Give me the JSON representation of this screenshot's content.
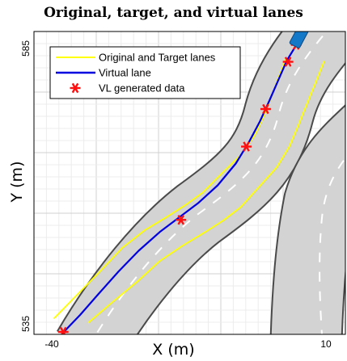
{
  "chart_data": {
    "type": "line",
    "title": "Original, target, and virtual lanes",
    "xlabel": "X (m)",
    "ylabel": "Y (m)",
    "xlim": [
      -40,
      10
    ],
    "ylim": [
      535,
      585
    ],
    "x_ticks_labeled": [
      "-40",
      "10"
    ],
    "y_ticks_labeled": [
      "535",
      "585"
    ],
    "grid": true,
    "legend_position": "top-left",
    "legend": [
      {
        "label": "Original and Target lanes",
        "color": "#ffff00",
        "style": "line"
      },
      {
        "label": "Virtual lane",
        "color": "#0000e0",
        "style": "line"
      },
      {
        "label": "VL generated data",
        "color": "#ff1010",
        "style": "asterisk"
      }
    ],
    "series": [
      {
        "name": "Original and Target lanes",
        "color": "#ffff00",
        "x": [
          -36.8,
          -33.2,
          -29.2,
          -25.8,
          -22.2,
          -18.5,
          -15.6,
          -12.9,
          -9.8,
          -6.8,
          -4.6,
          -3.2,
          -2.0,
          -0.8,
          0.5
        ],
        "y": [
          537.6,
          541.4,
          545.6,
          549.3,
          552.2,
          554.5,
          556.4,
          558.4,
          561.6,
          564.6,
          567.8,
          570.8,
          573.9,
          577.2,
          580.6
        ]
      },
      {
        "name": "Original and Target lanes",
        "color": "#ffff00",
        "x": [
          -31.3,
          -27.3,
          -23.4,
          -19.8,
          -16.2,
          -12.5,
          -9.6,
          -6.8,
          -3.8,
          -1.0,
          1.0,
          2.4,
          3.8,
          5.2,
          6.6
        ],
        "y": [
          536.9,
          540.4,
          543.7,
          547.1,
          549.6,
          551.9,
          553.8,
          556.0,
          559.4,
          562.6,
          566.0,
          569.4,
          573.0,
          576.5,
          580.1
        ]
      },
      {
        "name": "Virtual lane",
        "color": "#0000e0",
        "x": [
          -35.4,
          -32.6,
          -29.7,
          -26.4,
          -23.2,
          -19.8,
          -16.7,
          -13.6,
          -10.5,
          -7.6,
          -5.4,
          -3.7,
          -2.2,
          -0.8,
          0.6,
          2.2,
          3.7
        ],
        "y": [
          535.2,
          538.2,
          541.6,
          545.4,
          548.8,
          551.9,
          554.3,
          556.7,
          559.6,
          563.2,
          566.9,
          570.2,
          573.6,
          576.9,
          580.2,
          582.9,
          584.6
        ]
      },
      {
        "name": "VL generated data",
        "color": "#ff1010",
        "marker": "asterisk",
        "x": [
          -35.3,
          -16.4,
          -5.9,
          -2.8,
          0.8,
          2.1
        ],
        "y": [
          535.4,
          553.9,
          566.0,
          572.2,
          580.0,
          582.8
        ]
      }
    ],
    "ego_vehicle": {
      "x": 2.7,
      "y": 584.4,
      "heading_deg": 62,
      "color": "#1478c8"
    }
  }
}
